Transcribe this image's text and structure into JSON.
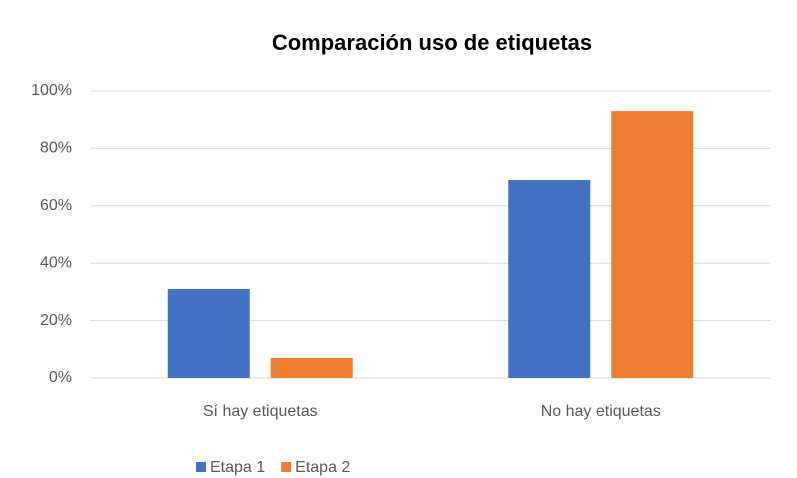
{
  "chart_data": {
    "type": "bar",
    "title": "Comparación uso de etiquetas",
    "categories": [
      "Sí hay etiquetas",
      "No hay etiquetas"
    ],
    "series": [
      {
        "name": "Etapa 1",
        "color": "#4472c4",
        "values": [
          31,
          69
        ]
      },
      {
        "name": "Etapa 2",
        "color": "#ed7d31",
        "values": [
          7,
          93
        ]
      }
    ],
    "ylim": [
      0,
      100
    ],
    "yticks": [
      {
        "value": 0,
        "label": "0%"
      },
      {
        "value": 20,
        "label": "20%"
      },
      {
        "value": 40,
        "label": "40%"
      },
      {
        "value": 60,
        "label": "60%"
      },
      {
        "value": 80,
        "label": "80%"
      },
      {
        "value": 100,
        "label": "100%"
      }
    ],
    "grid": true,
    "legend": "bottom"
  }
}
